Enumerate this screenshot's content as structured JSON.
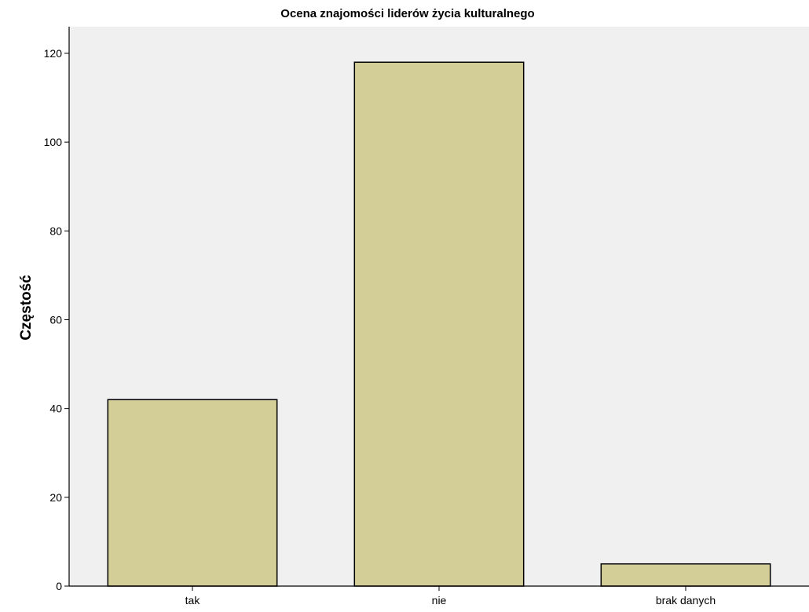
{
  "chart_data": {
    "type": "bar",
    "title": "Ocena znajomości liderów życia kulturalnego",
    "xlabel": "",
    "ylabel": "Częstość",
    "categories": [
      "tak",
      "nie",
      "brak danych"
    ],
    "values": [
      42,
      118,
      5
    ],
    "ylim": [
      0,
      126
    ],
    "yticks": [
      0,
      20,
      40,
      60,
      80,
      100,
      120
    ],
    "grid": false,
    "legend": "none",
    "colors": {
      "plot_background": "#f0f0f0",
      "bar_fill": "#d3ce97",
      "bar_stroke": "#000000"
    }
  }
}
